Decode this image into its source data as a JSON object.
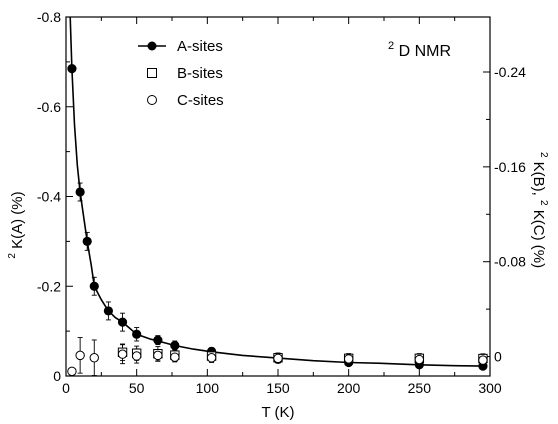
{
  "chart_data": {
    "type": "scatter",
    "annotation": {
      "base": "D NMR",
      "superscript": "2"
    },
    "xlabel": "T (K)",
    "ylabel_left": {
      "superscript": "2",
      "text": "K(A) (%)"
    },
    "ylabel_right": {
      "parts": [
        {
          "superscript": "2",
          "text": "K(B), "
        },
        {
          "superscript": "2",
          "text": "K(C) (%)"
        }
      ]
    },
    "xlim": [
      0,
      300
    ],
    "ylim_left": [
      0,
      -0.8
    ],
    "ylim_right": [
      0.0164,
      -0.2864
    ],
    "x_ticks": [
      0,
      50,
      100,
      150,
      200,
      250,
      300
    ],
    "x_tick_labels": [
      "0",
      "50",
      "100",
      "150",
      "200",
      "250",
      "300"
    ],
    "y_left_ticks": [
      0,
      -0.2,
      -0.4,
      -0.6,
      -0.8
    ],
    "y_left_tick_labels": [
      "0",
      "-0.2",
      "-0.4",
      "-0.6",
      "-0.8"
    ],
    "y_right_ticks": [
      0,
      -0.08,
      -0.16,
      -0.24
    ],
    "y_right_tick_labels": [
      "0",
      "-0.08",
      "-0.16",
      "-0.24"
    ],
    "legend_position": "top-center",
    "grid": false,
    "series": [
      {
        "name": "A-sites",
        "marker": "filled-circle",
        "axis": "left",
        "x": [
          4.2,
          10,
          15,
          20,
          30,
          40,
          50,
          65,
          77,
          103,
          150,
          200,
          250,
          295
        ],
        "y": [
          -0.685,
          -0.41,
          -0.3,
          -0.2,
          -0.145,
          -0.12,
          -0.093,
          -0.08,
          -0.068,
          -0.055,
          -0.037,
          -0.03,
          -0.025,
          -0.022
        ],
        "err": [
          0,
          0.02,
          0.02,
          0.02,
          0.02,
          0.02,
          0.015,
          0.01,
          0.01,
          0.008,
          0.005,
          0.005,
          0.005,
          0.005
        ]
      },
      {
        "name": "B-sites",
        "marker": "open-square",
        "axis": "right",
        "x": [
          40,
          50,
          65,
          77,
          103,
          150,
          200,
          250,
          295
        ],
        "y": [
          -0.0036,
          -0.0028,
          -0.0024,
          -0.0012,
          -0.0004,
          0.001,
          0.0015,
          0.0015,
          0.0017
        ],
        "err": [
          0.007,
          0.006,
          0.006,
          0.005,
          0.004,
          0.004,
          0.004,
          0.004,
          0.004
        ]
      },
      {
        "name": "C-sites",
        "marker": "open-circle",
        "axis": "right",
        "x": [
          4.2,
          10,
          20,
          40,
          50,
          65,
          77,
          103,
          150,
          200,
          250,
          295
        ],
        "y": [
          0.0125,
          -0.001,
          0.001,
          -0.002,
          -0.0005,
          -0.001,
          0.0005,
          0.001,
          0.0015,
          0.002,
          0.0025,
          0.003
        ],
        "err": [
          0,
          0.015,
          0.015,
          0.008,
          0.006,
          0.005,
          0.004,
          0.004,
          0.004,
          0.004,
          0.004,
          0.004
        ]
      }
    ],
    "fit_curve": {
      "axis": "left",
      "x": [
        3,
        4.2,
        6,
        8,
        10,
        12,
        15,
        18,
        20,
        25,
        30,
        35,
        40,
        50,
        60,
        65,
        77,
        90,
        103,
        125,
        150,
        175,
        200,
        225,
        250,
        275,
        295
      ],
      "y": [
        -0.8,
        -0.685,
        -0.56,
        -0.47,
        -0.41,
        -0.365,
        -0.3,
        -0.245,
        -0.2,
        -0.17,
        -0.145,
        -0.13,
        -0.12,
        -0.093,
        -0.082,
        -0.078,
        -0.068,
        -0.06,
        -0.054,
        -0.046,
        -0.04,
        -0.034,
        -0.03,
        -0.028,
        -0.025,
        -0.023,
        -0.022
      ]
    }
  }
}
